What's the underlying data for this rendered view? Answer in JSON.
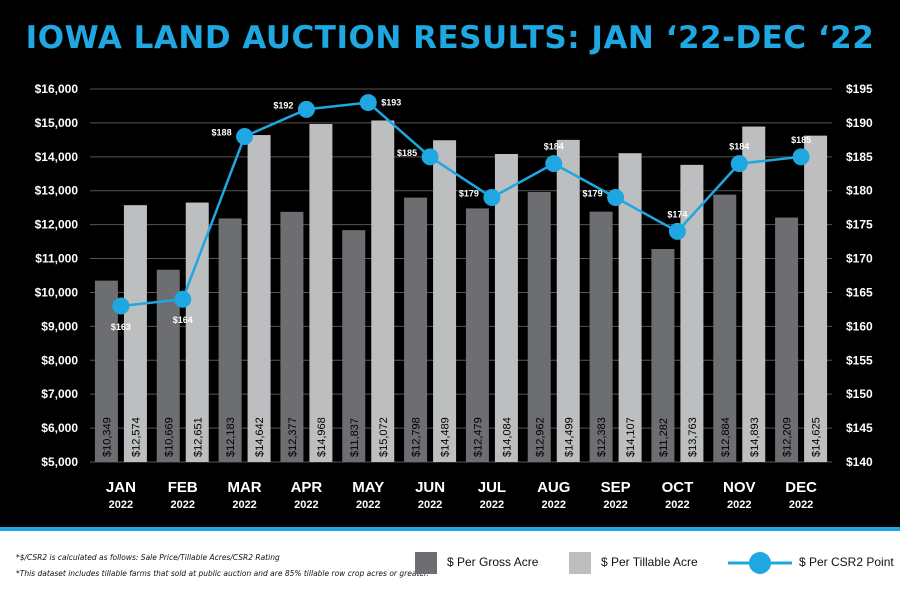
{
  "title": "IOWA LAND AUCTION RESULTS: JAN ‘22-DEC ‘22",
  "colors": {
    "background": "#000000",
    "accent": "#1ea7e1",
    "gross_bar": "#6d6e71",
    "tillable_bar": "#bcbec0",
    "grid": "#555555",
    "text": "#ffffff"
  },
  "notes": [
    "*$/CSR2 is calculated as follows: Sale Price/Tillable Acres/CSR2 Rating",
    "*This dataset includes tillable farms that sold at public auction and are 85% tillable row crop acres or greater."
  ],
  "legend": {
    "gross": "$ Per Gross Acre",
    "tillable": "$ Per Tillable Acre",
    "csr2": "$ Per CSR2 Point"
  },
  "chart_data": {
    "type": "bar",
    "title": "IOWA LAND AUCTION RESULTS: JAN ‘22-DEC ‘22",
    "categories": [
      "JAN",
      "FEB",
      "MAR",
      "APR",
      "MAY",
      "JUN",
      "JUL",
      "AUG",
      "SEP",
      "OCT",
      "NOV",
      "DEC"
    ],
    "category_years": [
      "2022",
      "2022",
      "2022",
      "2022",
      "2022",
      "2022",
      "2022",
      "2022",
      "2022",
      "2022",
      "2022",
      "2022"
    ],
    "series": [
      {
        "name": "$ Per Gross Acre",
        "type": "bar",
        "axis": "left",
        "values": [
          10349,
          10669,
          12183,
          12377,
          11837,
          12798,
          12479,
          12962,
          12383,
          11282,
          12884,
          12209
        ],
        "labels": [
          "$10,349",
          "$10,669",
          "$12,183",
          "$12,377",
          "$11,837",
          "$12,798",
          "$12,479",
          "$12,962",
          "$12,383",
          "$11,282",
          "$12,884",
          "$12,209"
        ]
      },
      {
        "name": "$ Per Tillable Acre",
        "type": "bar",
        "axis": "left",
        "values": [
          12574,
          12651,
          14642,
          14968,
          15072,
          14489,
          14084,
          14499,
          14107,
          13763,
          14893,
          14625
        ],
        "labels": [
          "$12,574",
          "$12,651",
          "$14,642",
          "$14,968",
          "$15,072",
          "$14,489",
          "$14,084",
          "$14,499",
          "$14,107",
          "$13,763",
          "$14,893",
          "$14,625"
        ]
      },
      {
        "name": "$ Per CSR2 Point",
        "type": "line",
        "axis": "right",
        "values": [
          163,
          164,
          188,
          192,
          193,
          185,
          179,
          184,
          179,
          174,
          184,
          185
        ],
        "labels": [
          "$163",
          "$164",
          "$188",
          "$192",
          "$193",
          "$185",
          "$179",
          "$184",
          "$179",
          "$174",
          "$184",
          "$185"
        ],
        "label_position": [
          "below",
          "below",
          "left",
          "left",
          "right",
          "left",
          "left",
          "above",
          "left",
          "above",
          "above",
          "above"
        ]
      }
    ],
    "y_left": {
      "ylim": [
        5000,
        16000
      ],
      "ticks": [
        5000,
        6000,
        7000,
        8000,
        9000,
        10000,
        11000,
        12000,
        13000,
        14000,
        15000,
        16000
      ],
      "tick_labels": [
        "$5,000",
        "$6,000",
        "$7,000",
        "$8,000",
        "$9,000",
        "$10,000",
        "$11,000",
        "$12,000",
        "$13,000",
        "$14,000",
        "$15,000",
        "$16,000"
      ]
    },
    "y_right": {
      "ylim": [
        140,
        195
      ],
      "ticks": [
        140,
        145,
        150,
        155,
        160,
        165,
        170,
        175,
        180,
        185,
        190,
        195
      ],
      "tick_labels": [
        "$140",
        "$145",
        "$150",
        "$155",
        "$160",
        "$165",
        "$170",
        "$175",
        "$180",
        "$185",
        "$190",
        "$195"
      ]
    },
    "grid": true,
    "legend_position": "bottom"
  }
}
